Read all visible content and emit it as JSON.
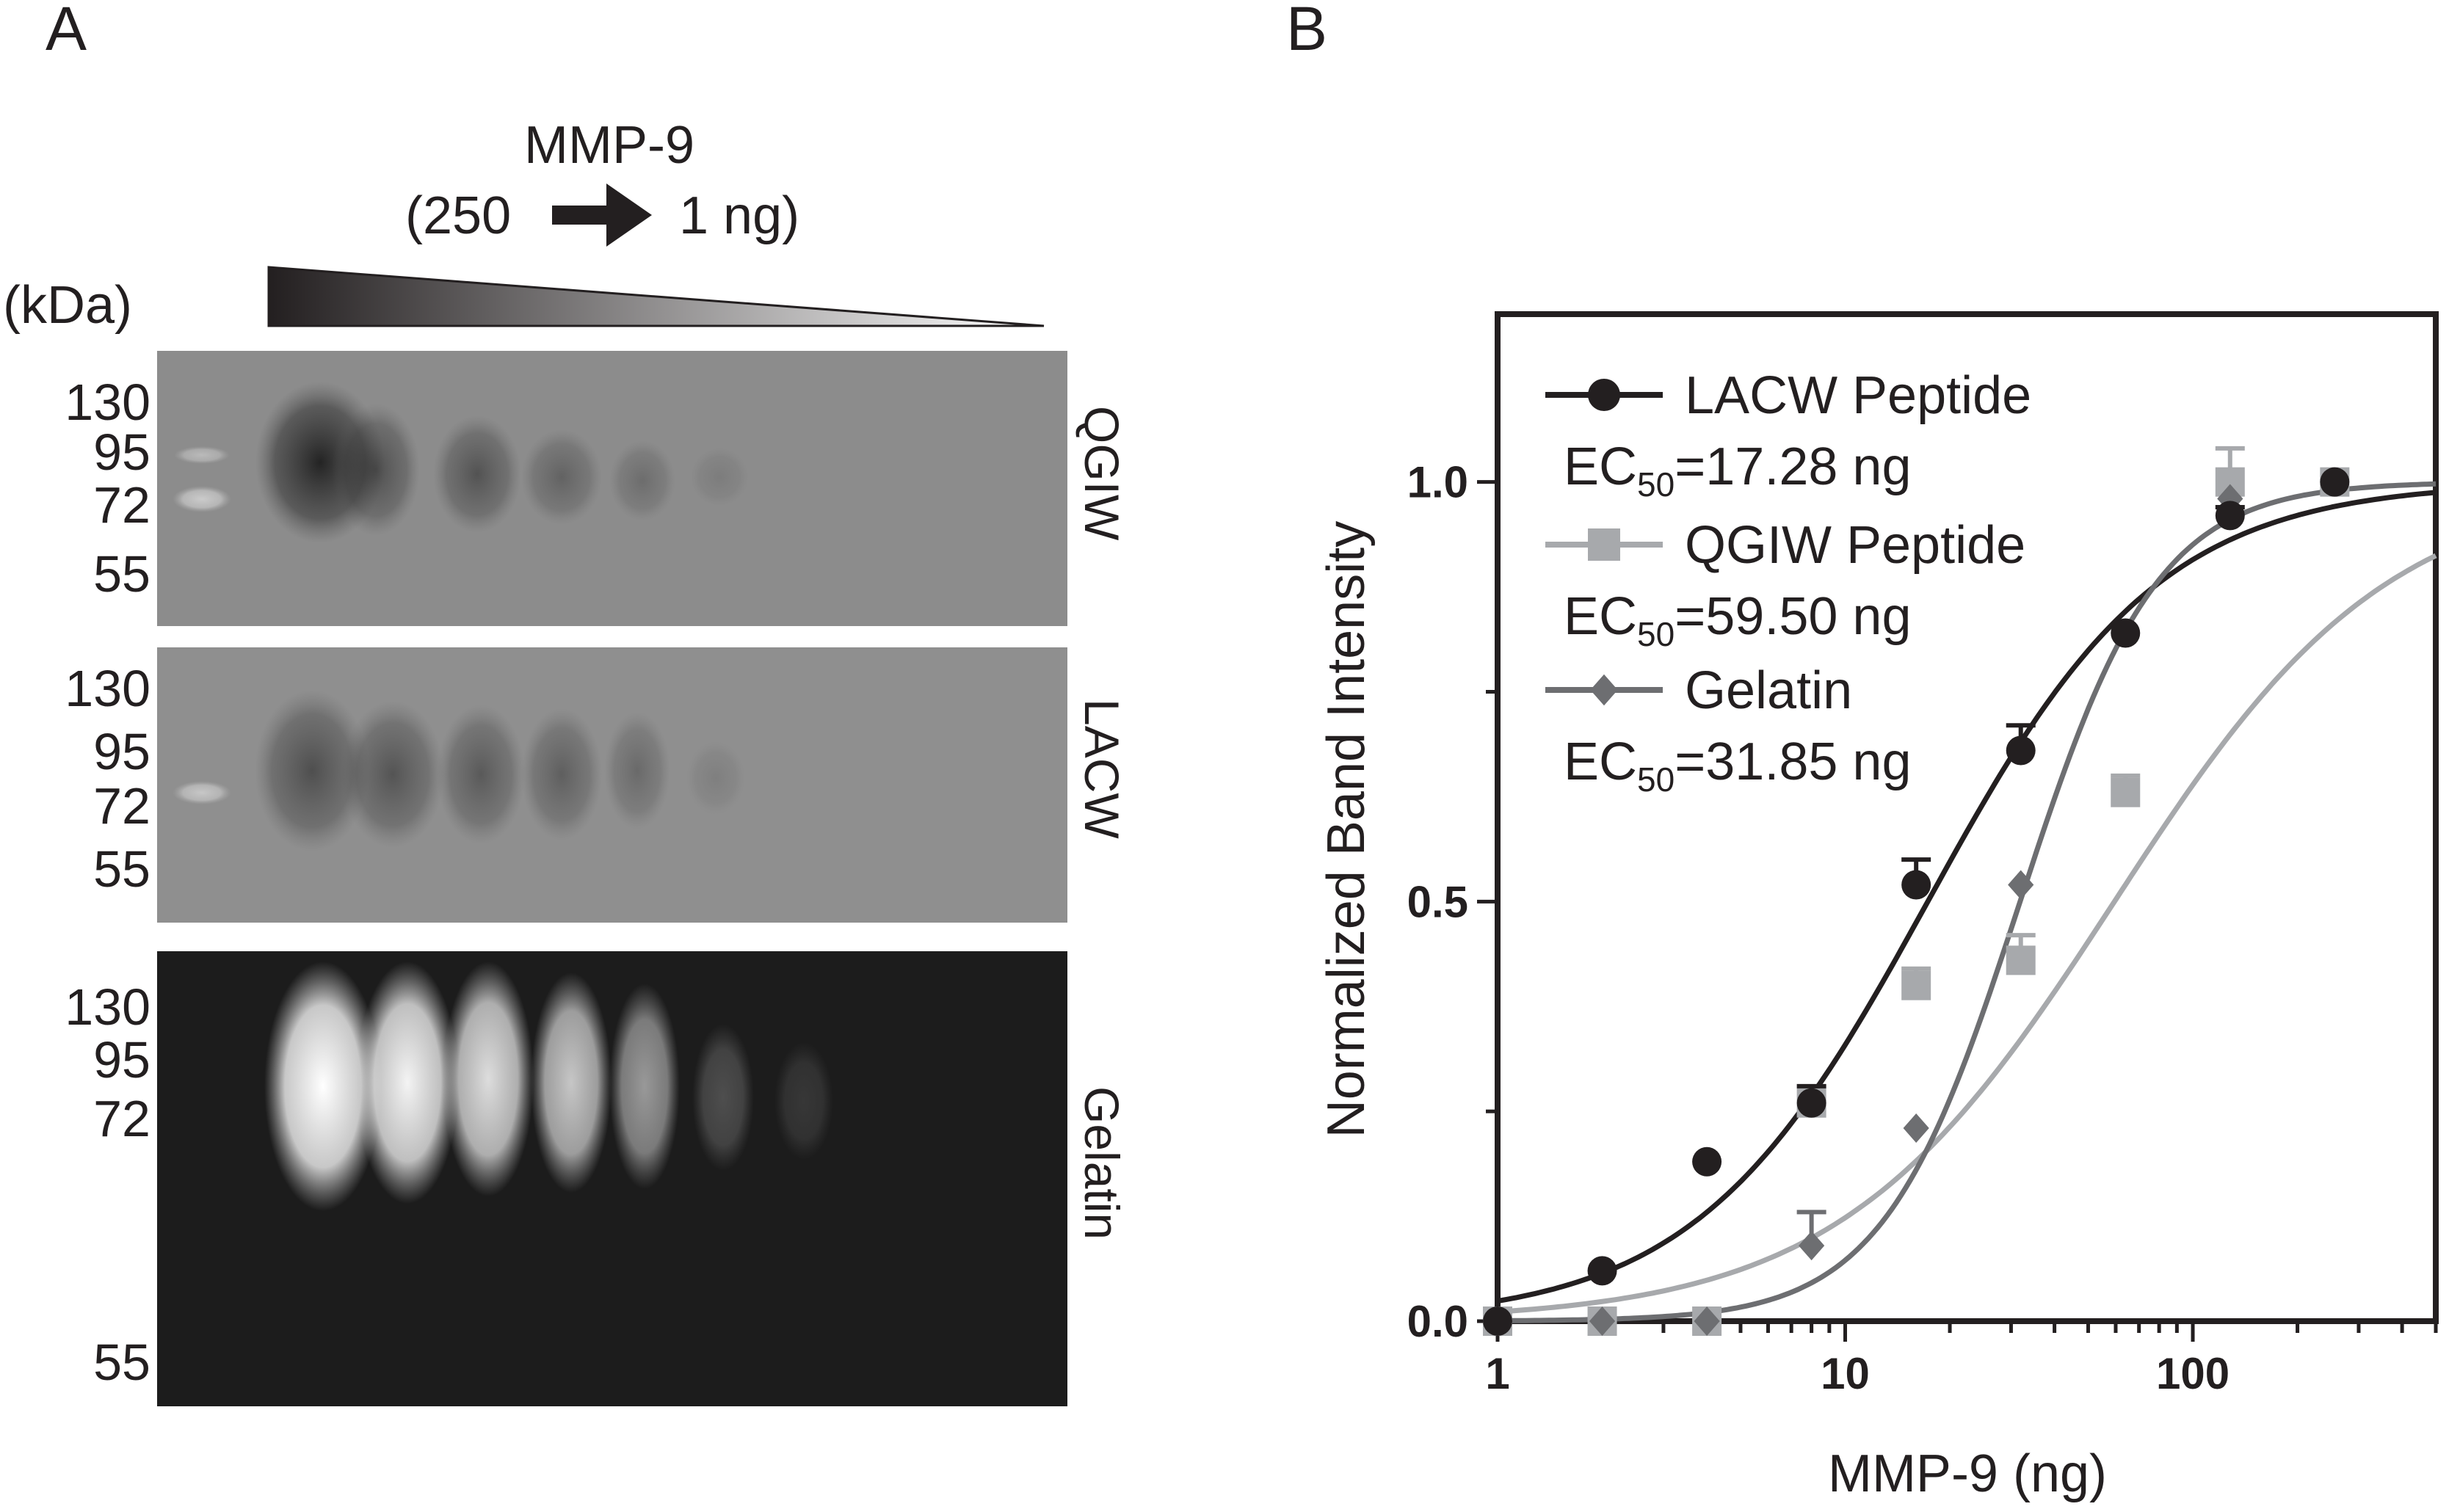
{
  "panel_a": {
    "label": "A",
    "header_title": "MMP-9",
    "header_left": "(250",
    "header_right": "1 ng)",
    "kda_label": "(kDa)",
    "gels": [
      {
        "name": "QGIW",
        "markers": [
          "130",
          "95",
          "72",
          "55"
        ]
      },
      {
        "name": "LACW",
        "markers": [
          "130",
          "95",
          "72",
          "55"
        ]
      },
      {
        "name": "Gelatin",
        "markers": [
          "130",
          "95",
          "72",
          "55"
        ]
      }
    ]
  },
  "panel_b": {
    "label": "B"
  },
  "colors": {
    "lacw": "#231f20",
    "qgiw": "#a7a9ac",
    "gelatin": "#6d6e71"
  },
  "chart_data": {
    "type": "scatter",
    "xlabel": "MMP-9 (ng)",
    "ylabel": "Normalized Band Intensity",
    "xscale": "log",
    "xlim": [
      1,
      500
    ],
    "ylim": [
      0,
      1.2
    ],
    "xticks": [
      "1",
      "10",
      "100"
    ],
    "yticks": [
      "0.0",
      "0.5",
      "1.0"
    ],
    "grid": false,
    "legend": "top-left",
    "series": [
      {
        "name": "LACW Peptide",
        "ec50": "EC",
        "ec50_sub": "50",
        "ec50_value": "=17.28 ng",
        "x": [
          1,
          2,
          4,
          8,
          16,
          32,
          64,
          128,
          256
        ],
        "y": [
          0.0,
          0.06,
          0.19,
          0.26,
          0.52,
          0.68,
          0.82,
          0.96,
          1.0
        ],
        "err": [
          0,
          0,
          0,
          0.02,
          0.03,
          0.03,
          0,
          0.01,
          0
        ]
      },
      {
        "name": "QGIW Peptide",
        "ec50": "EC",
        "ec50_sub": "50",
        "ec50_value": "=59.50 ng",
        "x": [
          1,
          2,
          4,
          8,
          16,
          32,
          64,
          128,
          256
        ],
        "y": [
          0.0,
          0.0,
          0.0,
          0.26,
          0.4,
          0.43,
          0.63,
          1.0,
          1.0
        ],
        "err": [
          0,
          0,
          0,
          0,
          0.02,
          0.03,
          0.02,
          0.04,
          0
        ]
      },
      {
        "name": "Gelatin",
        "ec50": "EC",
        "ec50_sub": "50",
        "ec50_value": "=31.85 ng",
        "x": [
          1,
          2,
          4,
          8,
          16,
          32,
          64,
          128,
          256
        ],
        "y": [
          0.0,
          0.0,
          0.0,
          0.09,
          0.23,
          0.52,
          0.82,
          0.98,
          1.0
        ],
        "err": [
          0,
          0,
          0,
          0.04,
          0,
          0,
          0,
          0,
          0
        ]
      }
    ]
  }
}
